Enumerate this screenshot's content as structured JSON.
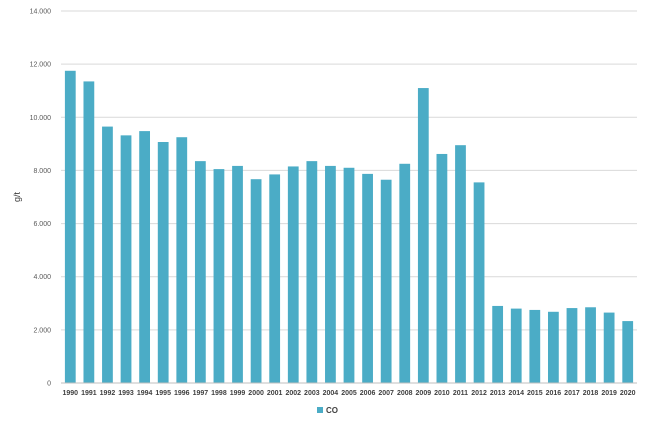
{
  "chart_data": {
    "type": "bar",
    "title": "",
    "xlabel": "",
    "ylabel": "g/t",
    "ylim": [
      0,
      14000
    ],
    "yticks": [
      0,
      2000,
      4000,
      6000,
      8000,
      10000,
      12000,
      14000
    ],
    "ytick_labels": [
      "0",
      "2.000",
      "4.000",
      "6.000",
      "8.000",
      "10.000",
      "12.000",
      "14.000"
    ],
    "grid": true,
    "legend_position": "bottom-center",
    "bar_color": "#4bacc6",
    "categories": [
      "1990",
      "1991",
      "1992",
      "1993",
      "1994",
      "1995",
      "1996",
      "1997",
      "1998",
      "1999",
      "2000",
      "2001",
      "2002",
      "2003",
      "2004",
      "2005",
      "2006",
      "2007",
      "2008",
      "2009",
      "2010",
      "2011",
      "2012",
      "2013",
      "2014",
      "2015",
      "2016",
      "2017",
      "2018",
      "2019",
      "2020"
    ],
    "series": [
      {
        "name": "CO",
        "values": [
          11750,
          11350,
          9650,
          9320,
          9480,
          9070,
          9250,
          8350,
          8050,
          8170,
          7670,
          7850,
          8150,
          8350,
          8170,
          8100,
          7870,
          7650,
          8250,
          11100,
          8620,
          8950,
          7550,
          2900,
          2800,
          2750,
          2680,
          2820,
          2850,
          2650,
          2330
        ]
      }
    ]
  }
}
